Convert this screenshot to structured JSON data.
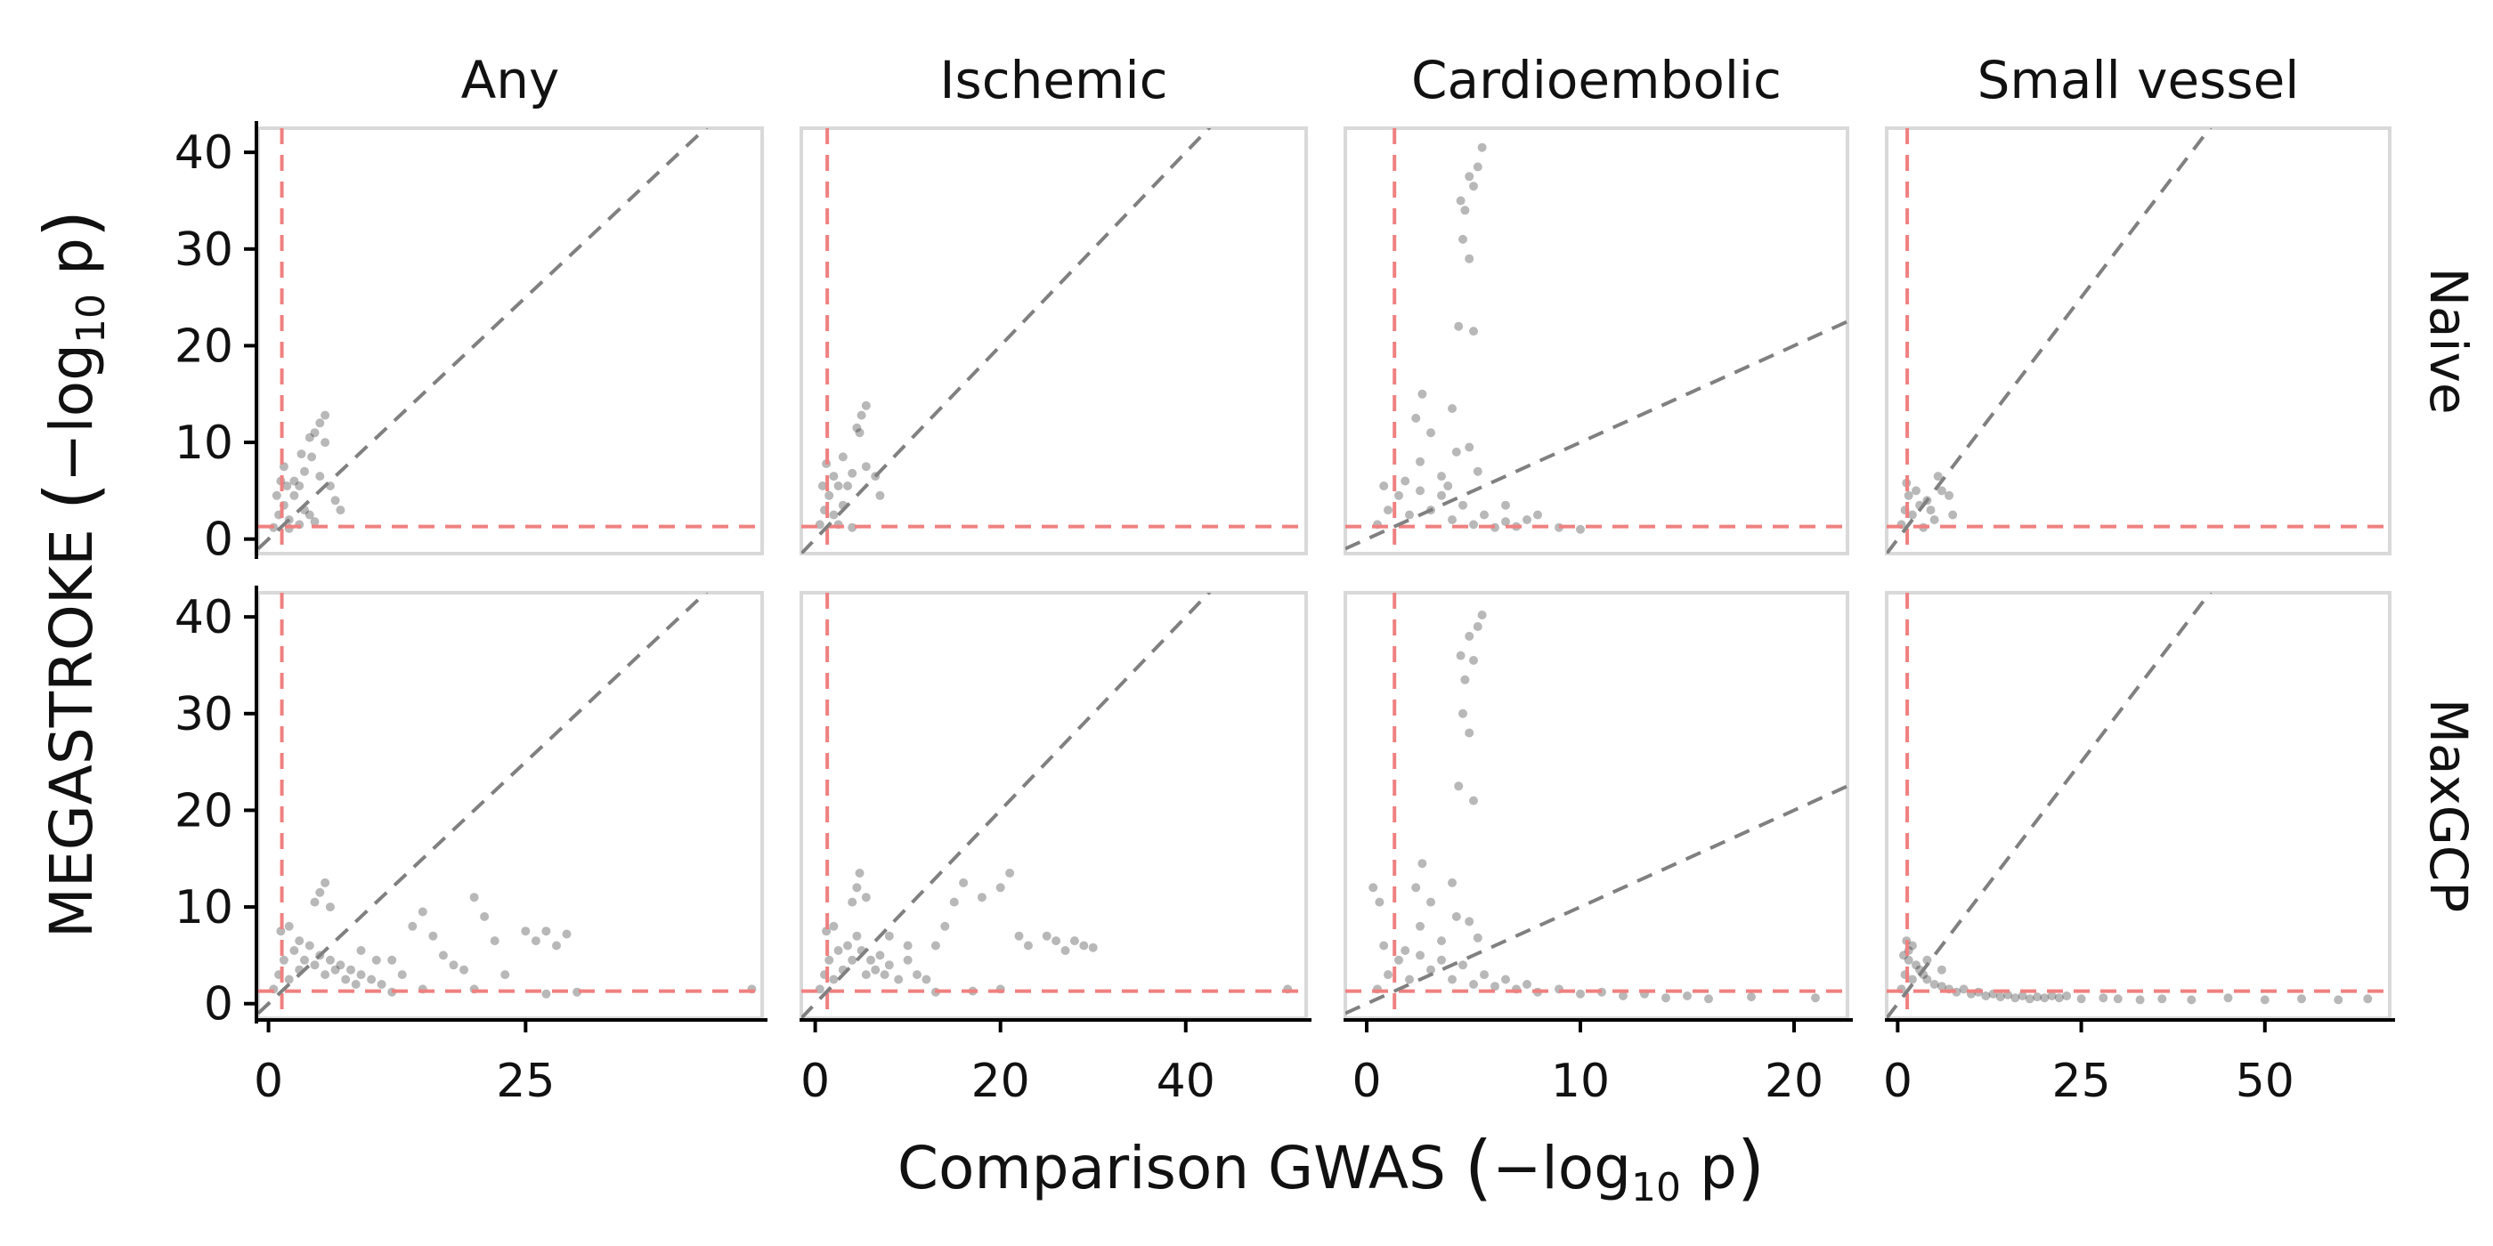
{
  "chart_data": {
    "type": "scatter",
    "xlabel_main": "Comparison GWAS ",
    "xlabel_math": "−log",
    "xlabel_sub": "10",
    "xlabel_tail": " p",
    "ylabel_main": "MEGASTROKE ",
    "ylabel_math": "−log",
    "ylabel_sub": "10",
    "ylabel_tail": " p",
    "columns": [
      {
        "label": "Any",
        "xlim": [
          -1,
          48
        ],
        "xticks": [
          "0",
          "25"
        ],
        "xtick_values": [
          0,
          25
        ],
        "diag_slope": 1,
        "diag_end_x": 45
      },
      {
        "label": "Ischemic",
        "xlim": [
          -1.5,
          53
        ],
        "xticks": [
          "0",
          "20",
          "40"
        ],
        "xtick_values": [
          0,
          20,
          40
        ],
        "diag_slope": 1,
        "diag_end_x": 45
      },
      {
        "label": "Cardioembolic",
        "xlim": [
          -1,
          22.5
        ],
        "xticks": [
          "0",
          "10",
          "20"
        ],
        "xtick_values": [
          0,
          10,
          20
        ],
        "diag_slope": 1,
        "diag_end_x": 42
      },
      {
        "label": "Small vessel",
        "xlim": [
          -1.5,
          67
        ],
        "xticks": [
          "0",
          "25",
          "50"
        ],
        "xtick_values": [
          0,
          25,
          50
        ],
        "diag_slope": 1,
        "diag_end_x": 45
      }
    ],
    "rows": [
      {
        "label": "Naive",
        "ylim": [
          -1.5,
          42.5
        ]
      },
      {
        "label": "MaxGCP",
        "ylim": [
          -1.5,
          42.5
        ]
      }
    ],
    "yticks": [
      "0",
      "10",
      "20",
      "30",
      "40"
    ],
    "ytick_values": [
      0,
      10,
      20,
      30,
      40
    ],
    "significance_threshold": 1.3,
    "reference_lines": {
      "threshold_color": "#f08080",
      "identity_color": "#808080"
    },
    "point_color": "#000000",
    "panels": [
      {
        "row": 0,
        "col": 0,
        "points": [
          [
            0.5,
            1.2
          ],
          [
            1,
            2.5
          ],
          [
            1.5,
            3.5
          ],
          [
            2,
            2
          ],
          [
            2.5,
            4.5
          ],
          [
            3,
            1.5
          ],
          [
            3.5,
            3
          ],
          [
            1.2,
            6
          ],
          [
            1.5,
            7.5
          ],
          [
            2.5,
            6
          ],
          [
            3,
            5.5
          ],
          [
            3.5,
            7
          ],
          [
            4,
            10.5
          ],
          [
            4.5,
            11
          ],
          [
            5,
            12
          ],
          [
            5.5,
            10
          ],
          [
            5.5,
            12.8
          ],
          [
            4.2,
            8.5
          ],
          [
            5,
            6.5
          ],
          [
            6,
            5.5
          ],
          [
            6.5,
            4
          ],
          [
            7,
            3
          ],
          [
            2,
            1.1
          ],
          [
            4,
            2.5
          ],
          [
            4.5,
            1.8
          ],
          [
            0.8,
            4.5
          ],
          [
            1.8,
            5.5
          ],
          [
            3.2,
            8.8
          ]
        ]
      },
      {
        "row": 0,
        "col": 1,
        "points": [
          [
            0.5,
            1.5
          ],
          [
            1,
            3
          ],
          [
            1.5,
            4.5
          ],
          [
            2,
            2.5
          ],
          [
            2.5,
            5.5
          ],
          [
            3,
            3.5
          ],
          [
            1.2,
            7.8
          ],
          [
            2,
            6.5
          ],
          [
            3.5,
            5.5
          ],
          [
            4,
            6.8
          ],
          [
            4.5,
            11.5
          ],
          [
            5,
            12.8
          ],
          [
            5.5,
            13.8
          ],
          [
            4.8,
            11
          ],
          [
            5.5,
            7.5
          ],
          [
            6.5,
            6.5
          ],
          [
            7,
            4.5
          ],
          [
            2.5,
            1.5
          ],
          [
            4,
            1.2
          ],
          [
            0.8,
            5.5
          ],
          [
            3,
            8.5
          ]
        ]
      },
      {
        "row": 0,
        "col": 2,
        "points": [
          [
            0.5,
            1.5
          ],
          [
            1,
            3
          ],
          [
            1.5,
            4.5
          ],
          [
            2,
            2.5
          ],
          [
            2.5,
            5
          ],
          [
            3,
            3
          ],
          [
            3.5,
            4.5
          ],
          [
            4,
            2
          ],
          [
            4.5,
            3.5
          ],
          [
            5,
            1.5
          ],
          [
            5.5,
            2.5
          ],
          [
            6,
            1.2
          ],
          [
            6.5,
            1.8
          ],
          [
            7,
            1.3
          ],
          [
            2.5,
            8
          ],
          [
            2.3,
            12.5
          ],
          [
            2.6,
            15
          ],
          [
            3,
            11
          ],
          [
            4,
            13.5
          ],
          [
            4.4,
            35
          ],
          [
            4.8,
            37.5
          ],
          [
            5,
            36.5
          ],
          [
            4.6,
            34
          ],
          [
            5.2,
            38.5
          ],
          [
            4.5,
            31
          ],
          [
            4.8,
            29
          ],
          [
            5.4,
            40.5
          ],
          [
            4.3,
            22
          ],
          [
            5,
            21.5
          ],
          [
            4.2,
            9
          ],
          [
            4.8,
            9.5
          ],
          [
            3.5,
            6.5
          ],
          [
            5.2,
            7
          ],
          [
            6.5,
            3.5
          ],
          [
            8,
            2.5
          ],
          [
            9,
            1.2
          ],
          [
            10,
            1
          ],
          [
            7.5,
            2
          ],
          [
            0.8,
            5.5
          ],
          [
            1.8,
            6
          ],
          [
            3.8,
            5.5
          ]
        ]
      },
      {
        "row": 0,
        "col": 3,
        "points": [
          [
            0.5,
            1.5
          ],
          [
            1,
            3
          ],
          [
            1.5,
            4.5
          ],
          [
            2,
            2.5
          ],
          [
            2.5,
            5
          ],
          [
            3,
            3.5
          ],
          [
            4,
            4
          ],
          [
            4.5,
            3
          ],
          [
            5,
            2
          ],
          [
            5.5,
            6.5
          ],
          [
            6,
            5
          ],
          [
            7,
            4.5
          ],
          [
            7.5,
            2.5
          ],
          [
            3.5,
            1.2
          ],
          [
            1.2,
            5.8
          ]
        ]
      },
      {
        "row": 1,
        "col": 0,
        "points": [
          [
            0.5,
            1.5
          ],
          [
            1,
            3
          ],
          [
            1.5,
            4.5
          ],
          [
            2,
            2.5
          ],
          [
            2.5,
            5.5
          ],
          [
            3,
            3.5
          ],
          [
            3.5,
            4.5
          ],
          [
            4,
            6
          ],
          [
            4.5,
            4
          ],
          [
            5,
            5
          ],
          [
            5.5,
            3
          ],
          [
            6,
            4.5
          ],
          [
            6.5,
            3.5
          ],
          [
            7,
            4
          ],
          [
            7.5,
            2.5
          ],
          [
            8,
            3.5
          ],
          [
            8.5,
            2
          ],
          [
            9,
            3
          ],
          [
            10,
            2.5
          ],
          [
            11,
            2
          ],
          [
            12,
            4.5
          ],
          [
            13,
            3
          ],
          [
            14,
            8
          ],
          [
            15,
            9.5
          ],
          [
            16,
            7
          ],
          [
            17,
            5
          ],
          [
            18,
            4
          ],
          [
            19,
            3.5
          ],
          [
            20,
            11
          ],
          [
            21,
            9
          ],
          [
            22,
            6.5
          ],
          [
            23,
            3
          ],
          [
            25,
            7.5
          ],
          [
            26,
            6.5
          ],
          [
            27,
            7.5
          ],
          [
            28,
            6
          ],
          [
            29,
            7.2
          ],
          [
            27,
            1
          ],
          [
            30,
            1.2
          ],
          [
            5,
            11.5
          ],
          [
            5.5,
            12.5
          ],
          [
            4.5,
            10.5
          ],
          [
            6,
            10
          ],
          [
            1.2,
            7.5
          ],
          [
            2,
            8
          ],
          [
            3,
            6.5
          ],
          [
            12,
            1.2
          ],
          [
            15,
            1.5
          ],
          [
            20,
            1.5
          ],
          [
            47,
            1.5
          ],
          [
            9,
            5.5
          ],
          [
            10.5,
            4.5
          ]
        ]
      },
      {
        "row": 1,
        "col": 1,
        "points": [
          [
            0.5,
            1.5
          ],
          [
            1,
            3
          ],
          [
            1.5,
            4.5
          ],
          [
            2,
            2.5
          ],
          [
            2.5,
            5.5
          ],
          [
            3,
            3.5
          ],
          [
            3.5,
            6
          ],
          [
            4,
            4.5
          ],
          [
            4.5,
            7
          ],
          [
            5,
            5.5
          ],
          [
            5.5,
            3
          ],
          [
            6,
            4.5
          ],
          [
            6.5,
            3.5
          ],
          [
            7,
            5
          ],
          [
            7.5,
            3
          ],
          [
            8,
            4
          ],
          [
            9,
            2.5
          ],
          [
            10,
            4.5
          ],
          [
            11,
            3
          ],
          [
            12,
            2.5
          ],
          [
            13,
            6
          ],
          [
            14,
            8
          ],
          [
            15,
            10.5
          ],
          [
            16,
            12.5
          ],
          [
            18,
            11
          ],
          [
            20,
            12
          ],
          [
            21,
            13.5
          ],
          [
            22,
            7
          ],
          [
            23,
            6
          ],
          [
            25,
            7
          ],
          [
            26,
            6.5
          ],
          [
            27,
            5.5
          ],
          [
            28,
            6.5
          ],
          [
            29,
            6
          ],
          [
            30,
            5.8
          ],
          [
            4,
            10.5
          ],
          [
            4.5,
            12
          ],
          [
            4.8,
            13.5
          ],
          [
            5.5,
            11
          ],
          [
            1.2,
            7.5
          ],
          [
            2,
            8
          ],
          [
            13,
            1.2
          ],
          [
            17,
            1.3
          ],
          [
            20,
            1.5
          ],
          [
            51,
            1.5
          ],
          [
            8,
            7
          ],
          [
            10,
            6
          ]
        ]
      },
      {
        "row": 1,
        "col": 2,
        "points": [
          [
            0.5,
            1.5
          ],
          [
            1,
            3
          ],
          [
            1.5,
            4.5
          ],
          [
            2,
            2.5
          ],
          [
            2.5,
            5
          ],
          [
            3,
            3.5
          ],
          [
            3.5,
            4.5
          ],
          [
            4,
            2.5
          ],
          [
            4.5,
            4
          ],
          [
            5,
            2
          ],
          [
            5.5,
            3
          ],
          [
            6,
            1.8
          ],
          [
            6.5,
            2.5
          ],
          [
            7,
            1.5
          ],
          [
            7.5,
            2
          ],
          [
            8,
            1.2
          ],
          [
            9,
            1.5
          ],
          [
            10,
            1
          ],
          [
            11,
            1.2
          ],
          [
            12,
            0.8
          ],
          [
            13,
            1
          ],
          [
            14,
            0.6
          ],
          [
            15,
            0.8
          ],
          [
            16,
            0.5
          ],
          [
            18,
            0.7
          ],
          [
            21,
            0.6
          ],
          [
            2.5,
            8
          ],
          [
            2.3,
            12
          ],
          [
            2.6,
            14.5
          ],
          [
            3,
            10.5
          ],
          [
            4,
            12.5
          ],
          [
            4.4,
            36
          ],
          [
            4.8,
            38
          ],
          [
            5,
            35.5
          ],
          [
            4.6,
            33.5
          ],
          [
            5.2,
            39
          ],
          [
            4.5,
            30
          ],
          [
            4.8,
            28
          ],
          [
            5.4,
            40.2
          ],
          [
            4.3,
            22.5
          ],
          [
            5,
            21
          ],
          [
            4.2,
            9
          ],
          [
            4.8,
            8.5
          ],
          [
            3.5,
            6.5
          ],
          [
            5.2,
            6.8
          ],
          [
            0.8,
            6
          ],
          [
            1.8,
            5.5
          ],
          [
            0.3,
            12
          ],
          [
            0.6,
            10.5
          ]
        ]
      },
      {
        "row": 1,
        "col": 3,
        "points": [
          [
            0.5,
            1.5
          ],
          [
            1,
            3
          ],
          [
            1.5,
            4.5
          ],
          [
            2,
            2.5
          ],
          [
            2.5,
            4
          ],
          [
            3,
            3.5
          ],
          [
            3.5,
            3
          ],
          [
            4,
            2.5
          ],
          [
            5,
            2
          ],
          [
            6,
            1.8
          ],
          [
            7,
            1.5
          ],
          [
            8,
            1.2
          ],
          [
            9,
            1.5
          ],
          [
            10,
            1
          ],
          [
            11,
            1.2
          ],
          [
            12,
            0.8
          ],
          [
            13,
            1
          ],
          [
            14,
            0.7
          ],
          [
            15,
            0.9
          ],
          [
            16,
            0.6
          ],
          [
            17,
            0.8
          ],
          [
            18,
            0.5
          ],
          [
            19,
            0.7
          ],
          [
            20,
            0.6
          ],
          [
            21,
            0.8
          ],
          [
            22,
            0.6
          ],
          [
            23,
            0.8
          ],
          [
            25,
            0.5
          ],
          [
            28,
            0.6
          ],
          [
            30,
            0.5
          ],
          [
            33,
            0.4
          ],
          [
            36,
            0.5
          ],
          [
            40,
            0.4
          ],
          [
            45,
            0.6
          ],
          [
            50,
            0.4
          ],
          [
            55,
            0.5
          ],
          [
            60,
            0.4
          ],
          [
            64,
            0.5
          ],
          [
            1.2,
            6.5
          ],
          [
            1.5,
            5.5
          ],
          [
            2,
            6
          ],
          [
            0.8,
            5
          ],
          [
            4,
            4.5
          ],
          [
            6,
            3.5
          ]
        ]
      }
    ]
  }
}
